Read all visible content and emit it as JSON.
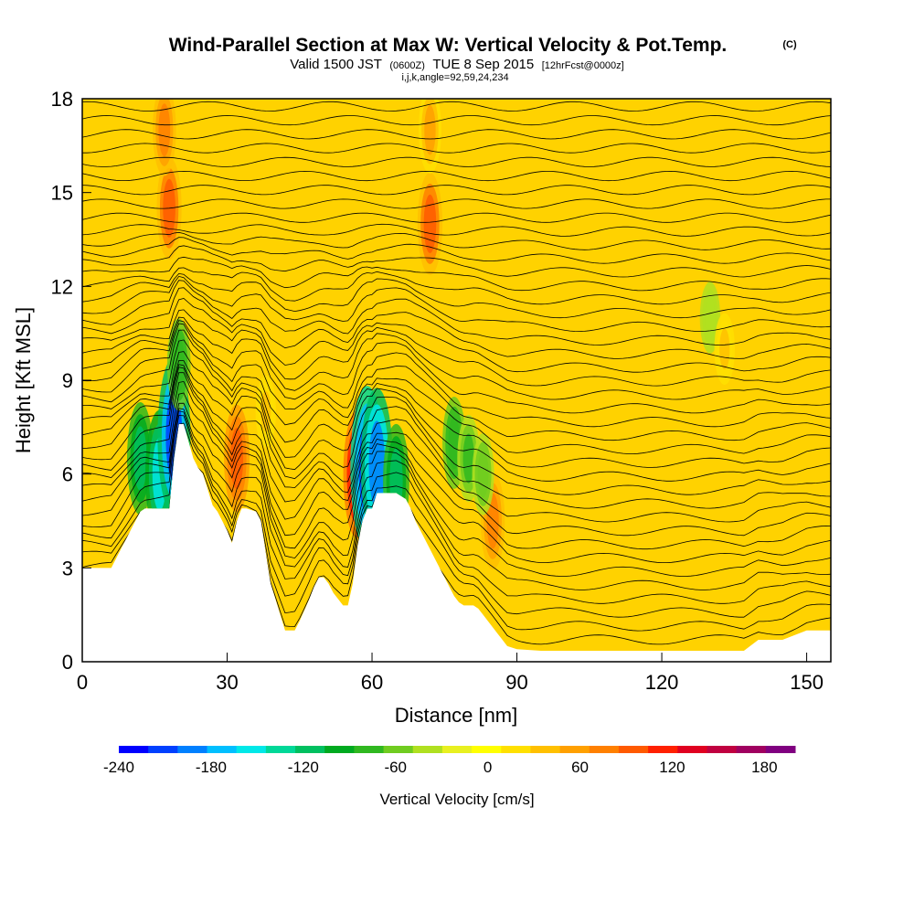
{
  "title": "Wind-Parallel Section at Max W: Vertical Velocity & Pot.Temp.",
  "title_suffix": "(C)",
  "subtitle": {
    "valid_prefix": "Valid 1500 JST",
    "utc": "(0600Z)",
    "date": "TUE 8 Sep 2015",
    "forecast": "[12hrFcst@0000z]"
  },
  "params_line": "i,j,k,angle=92,59,24,234",
  "chart_data": {
    "type": "heatmap",
    "title": "Wind-Parallel Section at Max W: Vertical Velocity & Pot.Temp.",
    "xlabel": "Distance [nm]",
    "ylabel": "Height [Kft MSL]",
    "xlim": [
      0,
      155
    ],
    "ylim": [
      0,
      18
    ],
    "x_ticks": [
      0,
      30,
      60,
      90,
      120,
      150
    ],
    "y_ticks": [
      0,
      3,
      6,
      9,
      12,
      15,
      18
    ],
    "grid": false,
    "terrain_profile": {
      "x": [
        0,
        6,
        7,
        8,
        9,
        10,
        11,
        12,
        13,
        18,
        19,
        20,
        21,
        23,
        24,
        25,
        26,
        27,
        28,
        29,
        30,
        31,
        32,
        33,
        34,
        36,
        37,
        38,
        39,
        40,
        41,
        42,
        44,
        45,
        47,
        48,
        49,
        50,
        51,
        52,
        53,
        54,
        55,
        56,
        57,
        58,
        59,
        60,
        61,
        62,
        63,
        65,
        67,
        68,
        69,
        70,
        71,
        72,
        73,
        74,
        75,
        76,
        77,
        78,
        79,
        80,
        81,
        82,
        83,
        84,
        85,
        86,
        87,
        88,
        90,
        95,
        100,
        110,
        120,
        130,
        137,
        140,
        145,
        150,
        155
      ],
      "height_kft": [
        3.0,
        3.0,
        3.3,
        3.6,
        3.9,
        4.2,
        4.5,
        4.8,
        4.9,
        4.9,
        6.5,
        7.6,
        7.6,
        6.5,
        6.2,
        6.0,
        5.5,
        5.0,
        4.8,
        4.5,
        4.2,
        3.8,
        4.5,
        4.9,
        4.9,
        4.8,
        4.5,
        3.5,
        2.5,
        2.0,
        1.5,
        1.0,
        1.0,
        1.3,
        2.0,
        2.4,
        2.7,
        2.7,
        2.5,
        2.2,
        2.0,
        1.8,
        1.8,
        2.5,
        3.7,
        4.5,
        4.9,
        4.9,
        5.4,
        5.4,
        5.4,
        5.4,
        5.2,
        4.9,
        4.5,
        4.2,
        3.9,
        3.6,
        3.3,
        3.0,
        2.7,
        2.4,
        2.1,
        1.9,
        1.8,
        1.8,
        1.8,
        1.7,
        1.5,
        1.3,
        1.1,
        0.9,
        0.7,
        0.5,
        0.4,
        0.35,
        0.35,
        0.35,
        0.35,
        0.35,
        0.35,
        0.7,
        0.7,
        1.0,
        1.0
      ]
    },
    "vertical_velocity_features_cm_s": [
      {
        "x": 12,
        "z": 6.5,
        "w": -120
      },
      {
        "x": 16,
        "z": 6.0,
        "w": -150
      },
      {
        "x": 19,
        "z": 7.2,
        "w": -210
      },
      {
        "x": 20,
        "z": 9.5,
        "w": -80
      },
      {
        "x": 18,
        "z": 14.5,
        "w": 100
      },
      {
        "x": 17,
        "z": 17.0,
        "w": 80
      },
      {
        "x": 32,
        "z": 6.5,
        "w": 110
      },
      {
        "x": 38,
        "z": 8.0,
        "w": 40
      },
      {
        "x": 57,
        "z": 6.0,
        "w": 150
      },
      {
        "x": 59,
        "z": 6.2,
        "w": -220
      },
      {
        "x": 61,
        "z": 6.3,
        "w": -200
      },
      {
        "x": 65,
        "z": 5.8,
        "w": -120
      },
      {
        "x": 72,
        "z": 14.0,
        "w": 100
      },
      {
        "x": 72,
        "z": 17.0,
        "w": 70
      },
      {
        "x": 77,
        "z": 7.0,
        "w": -80
      },
      {
        "x": 80,
        "z": 6.5,
        "w": -70
      },
      {
        "x": 85,
        "z": 4.5,
        "w": 90
      },
      {
        "x": 83,
        "z": 6.0,
        "w": -60
      },
      {
        "x": 130,
        "z": 11.0,
        "w": -40
      },
      {
        "x": 133,
        "z": 10.0,
        "w": 40
      }
    ],
    "theta_contours": {
      "count": 40,
      "interval_k": 1
    },
    "colorbar": {
      "title": "Vertical Velocity [cm/s]",
      "ticks": [
        -240,
        -180,
        -120,
        -60,
        0,
        60,
        120,
        180
      ],
      "min": -240,
      "max": 200,
      "step": 20,
      "colors": [
        "#0000ff",
        "#0040ff",
        "#0080ff",
        "#00bfff",
        "#00e8e8",
        "#00d898",
        "#00c060",
        "#00aa20",
        "#30b820",
        "#70cc20",
        "#b0e020",
        "#e8f020",
        "#ffff00",
        "#ffe000",
        "#ffc000",
        "#ffa000",
        "#ff8000",
        "#ff5a00",
        "#ff2000",
        "#e00020",
        "#c00040",
        "#a00060",
        "#800080"
      ]
    }
  }
}
